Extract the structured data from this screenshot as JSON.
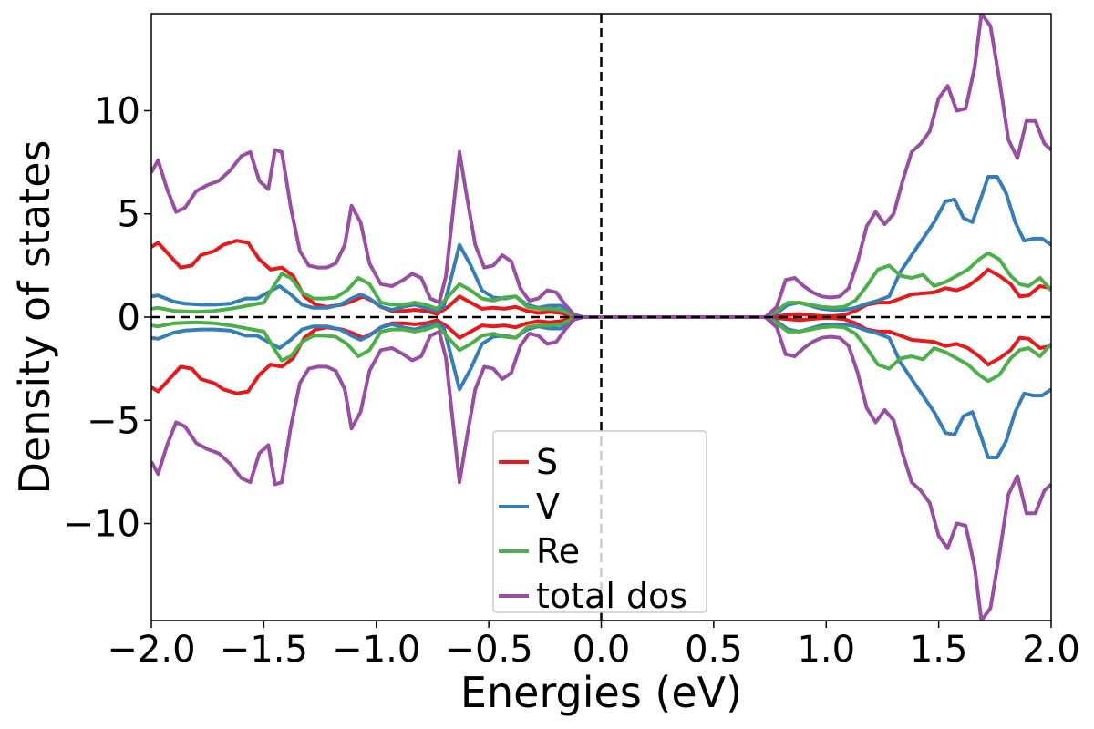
{
  "chart_data": {
    "type": "line",
    "xlabel": "Energies (eV)",
    "ylabel": "Density of states",
    "xlim": [
      -2.0,
      2.0
    ],
    "ylim": [
      -14.7,
      14.7
    ],
    "xticks": [
      -2.0,
      -1.5,
      -1.0,
      -0.5,
      0.0,
      0.5,
      1.0,
      1.5,
      2.0
    ],
    "xtick_labels": [
      "−2.0",
      "−1.5",
      "−1.0",
      "−0.5",
      "0.0",
      "0.5",
      "1.0",
      "1.5",
      "2.0"
    ],
    "yticks": [
      -10,
      -5,
      0,
      5,
      10
    ],
    "ytick_labels": [
      "−10",
      "−5",
      "0",
      "5",
      "10"
    ],
    "reference_lines": {
      "horizontal_y": 0,
      "vertical_x": 0.0,
      "style": "dashed",
      "color": "#000000"
    },
    "grid": false,
    "legend_position": "bottom-center",
    "mirrored_spin_down": true,
    "series": [
      {
        "name": "S",
        "color": "#e41a1c",
        "points": [
          [
            -2.0,
            3.4
          ],
          [
            -1.97,
            3.6
          ],
          [
            -1.87,
            2.4
          ],
          [
            -1.82,
            2.5
          ],
          [
            -1.78,
            3.0
          ],
          [
            -1.72,
            3.2
          ],
          [
            -1.68,
            3.5
          ],
          [
            -1.62,
            3.7
          ],
          [
            -1.57,
            3.6
          ],
          [
            -1.52,
            2.8
          ],
          [
            -1.47,
            2.3
          ],
          [
            -1.42,
            2.4
          ],
          [
            -1.37,
            2.0
          ],
          [
            -1.32,
            1.0
          ],
          [
            -1.27,
            0.6
          ],
          [
            -1.22,
            0.5
          ],
          [
            -1.15,
            0.6
          ],
          [
            -1.1,
            0.8
          ],
          [
            -1.06,
            1.0
          ],
          [
            -1.02,
            0.8
          ],
          [
            -0.98,
            0.5
          ],
          [
            -0.93,
            0.3
          ],
          [
            -0.88,
            0.3
          ],
          [
            -0.83,
            0.35
          ],
          [
            -0.78,
            0.3
          ],
          [
            -0.73,
            0.15
          ],
          [
            -0.68,
            0.5
          ],
          [
            -0.63,
            1.0
          ],
          [
            -0.58,
            0.7
          ],
          [
            -0.53,
            0.4
          ],
          [
            -0.48,
            0.45
          ],
          [
            -0.43,
            0.4
          ],
          [
            -0.38,
            0.5
          ],
          [
            -0.33,
            0.3
          ],
          [
            -0.28,
            0.2
          ],
          [
            -0.23,
            0.25
          ],
          [
            -0.18,
            0.2
          ],
          [
            -0.13,
            0.05
          ],
          [
            -0.08,
            0.0
          ],
          [
            0.0,
            0.0
          ],
          [
            0.5,
            0.0
          ],
          [
            0.73,
            0.0
          ],
          [
            0.78,
            0.05
          ],
          [
            0.83,
            0.1
          ],
          [
            0.88,
            0.15
          ],
          [
            0.93,
            0.1
          ],
          [
            0.98,
            0.05
          ],
          [
            1.03,
            0.05
          ],
          [
            1.08,
            0.1
          ],
          [
            1.13,
            0.3
          ],
          [
            1.18,
            0.6
          ],
          [
            1.23,
            0.7
          ],
          [
            1.28,
            0.7
          ],
          [
            1.33,
            0.9
          ],
          [
            1.38,
            1.1
          ],
          [
            1.43,
            1.15
          ],
          [
            1.48,
            1.2
          ],
          [
            1.53,
            1.4
          ],
          [
            1.58,
            1.3
          ],
          [
            1.63,
            1.5
          ],
          [
            1.68,
            1.9
          ],
          [
            1.72,
            2.3
          ],
          [
            1.77,
            2.0
          ],
          [
            1.82,
            1.6
          ],
          [
            1.86,
            1.0
          ],
          [
            1.9,
            1.05
          ],
          [
            1.95,
            1.5
          ],
          [
            2.0,
            1.4
          ]
        ]
      },
      {
        "name": "V",
        "color": "#377eb8",
        "points": [
          [
            -2.0,
            1.0
          ],
          [
            -1.97,
            1.05
          ],
          [
            -1.9,
            0.75
          ],
          [
            -1.85,
            0.65
          ],
          [
            -1.78,
            0.6
          ],
          [
            -1.72,
            0.6
          ],
          [
            -1.65,
            0.65
          ],
          [
            -1.58,
            0.9
          ],
          [
            -1.53,
            0.9
          ],
          [
            -1.48,
            1.2
          ],
          [
            -1.43,
            1.5
          ],
          [
            -1.38,
            1.1
          ],
          [
            -1.33,
            0.6
          ],
          [
            -1.28,
            0.45
          ],
          [
            -1.22,
            0.45
          ],
          [
            -1.16,
            0.6
          ],
          [
            -1.11,
            0.9
          ],
          [
            -1.07,
            1.1
          ],
          [
            -1.03,
            0.9
          ],
          [
            -0.98,
            0.5
          ],
          [
            -0.93,
            0.35
          ],
          [
            -0.88,
            0.5
          ],
          [
            -0.83,
            0.6
          ],
          [
            -0.78,
            0.45
          ],
          [
            -0.73,
            0.3
          ],
          [
            -0.7,
            0.5
          ],
          [
            -0.66,
            2.2
          ],
          [
            -0.63,
            3.5
          ],
          [
            -0.58,
            2.5
          ],
          [
            -0.53,
            1.3
          ],
          [
            -0.48,
            0.95
          ],
          [
            -0.43,
            0.9
          ],
          [
            -0.38,
            1.0
          ],
          [
            -0.33,
            0.6
          ],
          [
            -0.28,
            0.45
          ],
          [
            -0.23,
            0.55
          ],
          [
            -0.18,
            0.55
          ],
          [
            -0.13,
            0.15
          ],
          [
            -0.08,
            0.0
          ],
          [
            0.0,
            0.0
          ],
          [
            0.5,
            0.0
          ],
          [
            0.73,
            0.0
          ],
          [
            0.78,
            0.2
          ],
          [
            0.83,
            0.6
          ],
          [
            0.88,
            0.7
          ],
          [
            0.93,
            0.55
          ],
          [
            0.98,
            0.4
          ],
          [
            1.03,
            0.35
          ],
          [
            1.08,
            0.35
          ],
          [
            1.13,
            0.45
          ],
          [
            1.18,
            0.65
          ],
          [
            1.23,
            0.8
          ],
          [
            1.28,
            1.0
          ],
          [
            1.33,
            2.2
          ],
          [
            1.38,
            3.0
          ],
          [
            1.43,
            3.8
          ],
          [
            1.48,
            4.6
          ],
          [
            1.53,
            5.6
          ],
          [
            1.57,
            5.7
          ],
          [
            1.61,
            4.8
          ],
          [
            1.65,
            4.6
          ],
          [
            1.68,
            5.5
          ],
          [
            1.72,
            6.8
          ],
          [
            1.76,
            6.8
          ],
          [
            1.8,
            6.0
          ],
          [
            1.84,
            4.6
          ],
          [
            1.88,
            3.7
          ],
          [
            1.92,
            3.8
          ],
          [
            1.96,
            3.8
          ],
          [
            2.0,
            3.5
          ]
        ]
      },
      {
        "name": "Re",
        "color": "#4daf4a",
        "points": [
          [
            -2.0,
            0.4
          ],
          [
            -1.97,
            0.45
          ],
          [
            -1.9,
            0.3
          ],
          [
            -1.8,
            0.25
          ],
          [
            -1.72,
            0.3
          ],
          [
            -1.65,
            0.4
          ],
          [
            -1.6,
            0.5
          ],
          [
            -1.55,
            0.6
          ],
          [
            -1.5,
            0.7
          ],
          [
            -1.45,
            1.6
          ],
          [
            -1.42,
            2.1
          ],
          [
            -1.38,
            1.9
          ],
          [
            -1.33,
            1.2
          ],
          [
            -1.28,
            0.9
          ],
          [
            -1.23,
            0.9
          ],
          [
            -1.18,
            0.95
          ],
          [
            -1.13,
            1.3
          ],
          [
            -1.08,
            1.9
          ],
          [
            -1.03,
            1.6
          ],
          [
            -0.98,
            0.7
          ],
          [
            -0.93,
            0.6
          ],
          [
            -0.88,
            0.6
          ],
          [
            -0.83,
            0.7
          ],
          [
            -0.78,
            0.6
          ],
          [
            -0.73,
            0.4
          ],
          [
            -0.68,
            1.0
          ],
          [
            -0.63,
            1.6
          ],
          [
            -0.58,
            1.3
          ],
          [
            -0.53,
            0.9
          ],
          [
            -0.48,
            0.8
          ],
          [
            -0.43,
            0.95
          ],
          [
            -0.38,
            1.0
          ],
          [
            -0.33,
            0.5
          ],
          [
            -0.28,
            0.4
          ],
          [
            -0.23,
            0.4
          ],
          [
            -0.18,
            0.35
          ],
          [
            -0.13,
            0.1
          ],
          [
            -0.08,
            0.0
          ],
          [
            0.0,
            0.0
          ],
          [
            0.5,
            0.0
          ],
          [
            0.73,
            0.0
          ],
          [
            0.78,
            0.3
          ],
          [
            0.83,
            0.7
          ],
          [
            0.88,
            0.7
          ],
          [
            0.93,
            0.6
          ],
          [
            0.98,
            0.5
          ],
          [
            1.03,
            0.45
          ],
          [
            1.08,
            0.5
          ],
          [
            1.13,
            0.8
          ],
          [
            1.18,
            1.5
          ],
          [
            1.23,
            2.3
          ],
          [
            1.28,
            2.5
          ],
          [
            1.33,
            2.0
          ],
          [
            1.38,
            1.9
          ],
          [
            1.43,
            2.05
          ],
          [
            1.48,
            1.5
          ],
          [
            1.53,
            1.7
          ],
          [
            1.58,
            2.0
          ],
          [
            1.63,
            2.3
          ],
          [
            1.68,
            2.8
          ],
          [
            1.72,
            3.1
          ],
          [
            1.77,
            2.8
          ],
          [
            1.82,
            2.0
          ],
          [
            1.86,
            1.6
          ],
          [
            1.9,
            1.5
          ],
          [
            1.95,
            1.9
          ],
          [
            2.0,
            1.3
          ]
        ]
      },
      {
        "name": "total dos",
        "color": "#984ea3",
        "points": [
          [
            -2.0,
            7.0
          ],
          [
            -1.97,
            7.6
          ],
          [
            -1.93,
            6.2
          ],
          [
            -1.89,
            5.1
          ],
          [
            -1.85,
            5.3
          ],
          [
            -1.8,
            6.1
          ],
          [
            -1.75,
            6.4
          ],
          [
            -1.7,
            6.6
          ],
          [
            -1.65,
            7.1
          ],
          [
            -1.6,
            7.8
          ],
          [
            -1.56,
            8.0
          ],
          [
            -1.52,
            6.6
          ],
          [
            -1.48,
            6.2
          ],
          [
            -1.45,
            8.1
          ],
          [
            -1.42,
            8.0
          ],
          [
            -1.38,
            5.3
          ],
          [
            -1.34,
            3.2
          ],
          [
            -1.3,
            2.5
          ],
          [
            -1.26,
            2.4
          ],
          [
            -1.22,
            2.4
          ],
          [
            -1.18,
            2.6
          ],
          [
            -1.14,
            3.5
          ],
          [
            -1.11,
            5.4
          ],
          [
            -1.07,
            4.6
          ],
          [
            -1.03,
            2.6
          ],
          [
            -0.98,
            1.6
          ],
          [
            -0.93,
            1.5
          ],
          [
            -0.88,
            1.8
          ],
          [
            -0.84,
            2.1
          ],
          [
            -0.8,
            1.9
          ],
          [
            -0.76,
            0.9
          ],
          [
            -0.72,
            0.7
          ],
          [
            -0.69,
            2.0
          ],
          [
            -0.66,
            5.0
          ],
          [
            -0.63,
            8.0
          ],
          [
            -0.6,
            6.0
          ],
          [
            -0.56,
            3.5
          ],
          [
            -0.52,
            2.4
          ],
          [
            -0.48,
            2.5
          ],
          [
            -0.44,
            3.0
          ],
          [
            -0.4,
            2.7
          ],
          [
            -0.36,
            1.4
          ],
          [
            -0.32,
            0.8
          ],
          [
            -0.28,
            0.9
          ],
          [
            -0.24,
            1.3
          ],
          [
            -0.2,
            1.2
          ],
          [
            -0.16,
            0.6
          ],
          [
            -0.12,
            0.1
          ],
          [
            -0.08,
            0.0
          ],
          [
            0.0,
            0.0
          ],
          [
            0.5,
            0.0
          ],
          [
            0.73,
            0.0
          ],
          [
            0.78,
            0.5
          ],
          [
            0.82,
            1.8
          ],
          [
            0.86,
            1.9
          ],
          [
            0.9,
            1.5
          ],
          [
            0.94,
            1.2
          ],
          [
            0.98,
            1.0
          ],
          [
            1.02,
            0.95
          ],
          [
            1.06,
            1.0
          ],
          [
            1.1,
            1.4
          ],
          [
            1.14,
            2.7
          ],
          [
            1.18,
            4.4
          ],
          [
            1.22,
            5.1
          ],
          [
            1.26,
            4.5
          ],
          [
            1.3,
            5.0
          ],
          [
            1.34,
            6.6
          ],
          [
            1.38,
            8.0
          ],
          [
            1.42,
            8.4
          ],
          [
            1.46,
            9.0
          ],
          [
            1.5,
            10.6
          ],
          [
            1.54,
            11.2
          ],
          [
            1.58,
            10.0
          ],
          [
            1.62,
            10.1
          ],
          [
            1.66,
            12.1
          ],
          [
            1.69,
            14.7
          ],
          [
            1.73,
            14.1
          ],
          [
            1.77,
            11.5
          ],
          [
            1.81,
            8.6
          ],
          [
            1.85,
            7.7
          ],
          [
            1.89,
            9.5
          ],
          [
            1.93,
            9.5
          ],
          [
            1.97,
            8.4
          ],
          [
            2.0,
            8.1
          ]
        ]
      }
    ]
  }
}
